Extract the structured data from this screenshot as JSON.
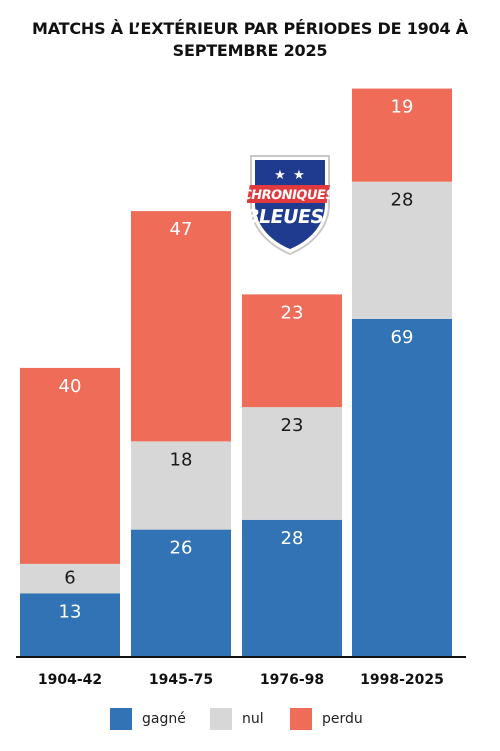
{
  "colors": {
    "gagne": "#3273b6",
    "nul": "#d7d7d7",
    "perdu": "#ee6c58",
    "axis": "#111111",
    "logo_navy": "#1f3b8f",
    "logo_red": "#e03a3e"
  },
  "logo": {
    "line1": "CHRONIQUES",
    "line2": "BLEUES"
  },
  "chart_data": {
    "type": "bar",
    "stacked": true,
    "title": "MATCHS À L’EXTÉRIEUR PAR PÉRIODES DE 1904 À SEPTEMBRE 2025",
    "title_lines": [
      "MATCHS À L’EXTÉRIEUR PAR PÉRIODES DE 1904 À",
      "SEPTEMBRE 2025"
    ],
    "categories": [
      "1904-42",
      "1945-75",
      "1976-98",
      "1998-2025"
    ],
    "series": [
      {
        "name": "gagné",
        "key": "gagne",
        "values": [
          13,
          26,
          28,
          69
        ]
      },
      {
        "name": "nul",
        "key": "nul",
        "values": [
          6,
          18,
          23,
          28
        ]
      },
      {
        "name": "perdu",
        "key": "perdu",
        "values": [
          40,
          47,
          23,
          19
        ]
      }
    ],
    "legend_position": "bottom",
    "grid": false
  }
}
